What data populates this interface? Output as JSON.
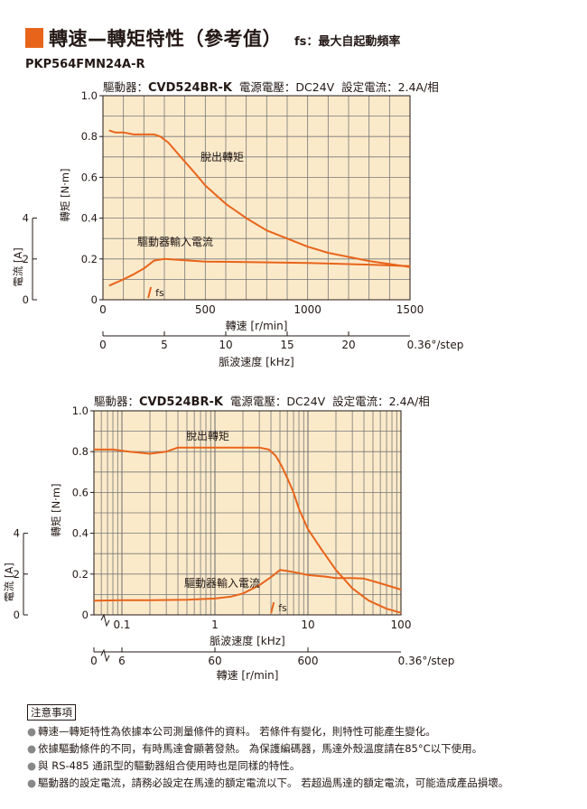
{
  "header": {
    "title": "轉速—轉矩特性（參考值）",
    "fs_label": "fs：最大自起動頻率",
    "model": "PKP564FMN24A-R",
    "accent_color": "#e8641b"
  },
  "conditions": [
    {
      "prefix": "驅動器：",
      "driver": "CVD524BR-K",
      "voltage": "電源電壓：DC24V",
      "current": "設定電流：2.4A/相"
    },
    {
      "prefix": "驅動器：",
      "driver": "CVD524BR-K",
      "voltage": "電源電壓：DC24V",
      "current": "設定電流：2.4A/相"
    }
  ],
  "chart_data": [
    {
      "type": "line",
      "x_scale": "linear",
      "xlabel": "轉速 [r/min]",
      "xlim": [
        0,
        1500
      ],
      "x_ticks": [
        "0",
        "500",
        "1000",
        "1500"
      ],
      "ylabel_torque": "轉矩 [N·m]",
      "ylim_torque": [
        0,
        1.0
      ],
      "torque_ticks": [
        "0",
        "0.2",
        "0.4",
        "0.6",
        "0.8",
        "1.0"
      ],
      "ylabel_current": "電流 [A]",
      "current_ticks": [
        "0",
        "2",
        "4"
      ],
      "second_axis": {
        "label": "脈波速度 [kHz]",
        "ticks": [
          "0",
          "5",
          "10",
          "15",
          "20"
        ],
        "suffix": "0.36°/step"
      },
      "grid": true,
      "series": [
        {
          "name": "脫出轉矩",
          "color": "#e8641b",
          "x": [
            30,
            60,
            100,
            150,
            200,
            250,
            280,
            320,
            380,
            450,
            500,
            600,
            700,
            800,
            900,
            1000,
            1100,
            1200,
            1300,
            1400,
            1500
          ],
          "y": [
            0.83,
            0.82,
            0.82,
            0.81,
            0.81,
            0.81,
            0.8,
            0.77,
            0.7,
            0.62,
            0.56,
            0.47,
            0.4,
            0.34,
            0.3,
            0.26,
            0.23,
            0.21,
            0.19,
            0.175,
            0.16
          ]
        },
        {
          "name": "驅動器輸入電流",
          "color": "#e8641b",
          "x": [
            30,
            100,
            150,
            200,
            250,
            300,
            400,
            500,
            700,
            1000,
            1300,
            1500
          ],
          "y": [
            0.69,
            1.0,
            1.25,
            1.53,
            1.92,
            2.0,
            1.94,
            1.87,
            1.85,
            1.8,
            1.72,
            1.65
          ],
          "unit": "A"
        }
      ],
      "annotations": {
        "fs": "fs",
        "fs_x": 230
      }
    },
    {
      "type": "line",
      "x_scale": "log",
      "xlabel": "脈波速度 [kHz]",
      "xlim": [
        0.05,
        100
      ],
      "x_ticks": [
        "0.1",
        "1",
        "10",
        "100"
      ],
      "ylabel_torque": "轉矩 [N·m]",
      "ylim_torque": [
        0,
        1.0
      ],
      "torque_ticks": [
        "0",
        "0.2",
        "0.4",
        "0.6",
        "0.8",
        "1.0"
      ],
      "ylabel_current": "電流 [A]",
      "current_ticks": [
        "0",
        "2",
        "4"
      ],
      "second_axis": {
        "label": "轉速 [r/min]",
        "ticks": [
          "0",
          "6",
          "60",
          "600"
        ],
        "suffix": "0.36°/step"
      },
      "grid": true,
      "series": [
        {
          "name": "脫出轉矩",
          "color": "#e8641b",
          "x": [
            0.05,
            0.08,
            0.12,
            0.2,
            0.3,
            0.4,
            0.6,
            0.8,
            1,
            1.5,
            2,
            3,
            3.8,
            4.5,
            5.2,
            6,
            7,
            8,
            10,
            14,
            20,
            30,
            45,
            70,
            100
          ],
          "y": [
            0.81,
            0.81,
            0.8,
            0.79,
            0.8,
            0.82,
            0.82,
            0.82,
            0.82,
            0.82,
            0.82,
            0.82,
            0.81,
            0.78,
            0.73,
            0.67,
            0.6,
            0.52,
            0.42,
            0.32,
            0.22,
            0.13,
            0.07,
            0.03,
            0.01
          ]
        },
        {
          "name": "驅動器輸入電流",
          "color": "#e8641b",
          "x": [
            0.05,
            0.1,
            0.2,
            0.5,
            1,
            1.5,
            2,
            3,
            4,
            5,
            6,
            8,
            10,
            15,
            20,
            30,
            40,
            60,
            100
          ],
          "y": [
            0.7,
            0.72,
            0.72,
            0.74,
            0.8,
            0.9,
            1.05,
            1.45,
            1.85,
            2.2,
            2.15,
            2.05,
            1.95,
            1.88,
            1.8,
            1.8,
            1.78,
            1.55,
            1.24
          ],
          "unit": "A"
        }
      ],
      "annotations": {
        "fs": "fs",
        "fs_x": 4.2
      }
    }
  ],
  "notes": {
    "title": "注意事項",
    "items": [
      "轉速—轉矩特性為依據本公司測量條件的資料。 若條件有變化，則特性可能產生變化。",
      "依據驅動條件的不同，有時馬達會顯著發熱。 為保護編碼器，馬達外殼溫度請在85°C以下使用。",
      "與 RS-485 通訊型的驅動器組合使用時也是同樣的特性。",
      "驅動器的設定電流，請務必設定在馬達的額定電流以下。 若超過馬達的額定電流，可能造成產品損壞。"
    ]
  }
}
